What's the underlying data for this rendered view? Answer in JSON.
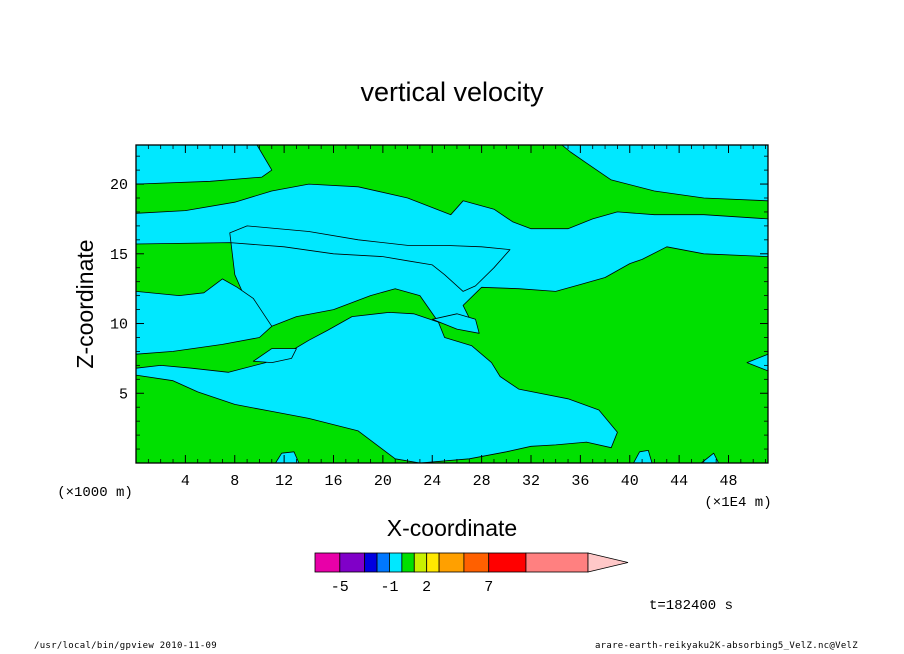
{
  "chart_data": {
    "type": "heatmap",
    "title": "vertical velocity",
    "xlabel": "X-coordinate",
    "ylabel": "Z-coordinate",
    "x_unit": "(×1E4 m)",
    "y_unit": "(×1000 m)",
    "xlim": [
      0,
      51.2
    ],
    "ylim": [
      0,
      22.8
    ],
    "x_ticks": [
      4,
      8,
      12,
      16,
      20,
      24,
      28,
      32,
      36,
      40,
      44,
      48
    ],
    "y_ticks": [
      5,
      10,
      15,
      20
    ],
    "colorbar": {
      "labels": [
        "-5",
        "-1",
        "2",
        "7"
      ],
      "label_values": [
        -5,
        -1,
        2,
        7
      ],
      "bins": [
        {
          "lo": -7,
          "hi": -5,
          "color": "#e800a8"
        },
        {
          "lo": -5,
          "hi": -3,
          "color": "#8000c8"
        },
        {
          "lo": -3,
          "hi": -2,
          "color": "#0000e0"
        },
        {
          "lo": -2,
          "hi": -1,
          "color": "#0078ff"
        },
        {
          "lo": -1,
          "hi": 0,
          "color": "#00e8ff"
        },
        {
          "lo": 0,
          "hi": 1,
          "color": "#00e000"
        },
        {
          "lo": 1,
          "hi": 2,
          "color": "#c8f000"
        },
        {
          "lo": 2,
          "hi": 3,
          "color": "#ffe800"
        },
        {
          "lo": 3,
          "hi": 5,
          "color": "#ffa000"
        },
        {
          "lo": 5,
          "hi": 7,
          "color": "#ff6000"
        },
        {
          "lo": 7,
          "hi": 10,
          "color": "#ff0000"
        },
        {
          "lo": 10,
          "hi": 15,
          "color": "#ff8080"
        }
      ],
      "overflow_color": "#ffc8c8"
    },
    "field": {
      "background_color": "#00e000",
      "region_color": "#00e8ff",
      "regions": [
        [
          [
            0,
            22.8
          ],
          [
            9.8,
            22.8
          ],
          [
            11,
            21
          ],
          [
            10.2,
            20.5
          ],
          [
            6,
            20.2
          ],
          [
            0,
            20
          ]
        ],
        [
          [
            0,
            17.9
          ],
          [
            4,
            18.1
          ],
          [
            8,
            18.7
          ],
          [
            11,
            19.5
          ],
          [
            14,
            20
          ],
          [
            18,
            19.8
          ],
          [
            22,
            19
          ],
          [
            25.5,
            17.8
          ],
          [
            26.5,
            18.8
          ],
          [
            29,
            18.2
          ],
          [
            30.5,
            17.3
          ],
          [
            32,
            16.8
          ],
          [
            35,
            16.8
          ],
          [
            37,
            17.5
          ],
          [
            39,
            18
          ],
          [
            42,
            17.8
          ],
          [
            46,
            17.8
          ],
          [
            51.2,
            17.5
          ],
          [
            51.2,
            14.8
          ],
          [
            46,
            15
          ],
          [
            43,
            15.5
          ],
          [
            41,
            14.6
          ],
          [
            40,
            14.3
          ],
          [
            38,
            13.3
          ],
          [
            36,
            12.8
          ],
          [
            34,
            12.3
          ],
          [
            31,
            12.5
          ],
          [
            28,
            12.6
          ],
          [
            26.5,
            11.3
          ],
          [
            27.5,
            9.5
          ],
          [
            24.5,
            10.1
          ],
          [
            23,
            12
          ],
          [
            21,
            12.5
          ],
          [
            19,
            12
          ],
          [
            16,
            11
          ],
          [
            13,
            10.5
          ],
          [
            11,
            9.8
          ],
          [
            9,
            11.5
          ],
          [
            8,
            13.5
          ],
          [
            7.6,
            16.5
          ],
          [
            9,
            17
          ],
          [
            14,
            16.6
          ],
          [
            18,
            16
          ],
          [
            22,
            15.6
          ],
          [
            25,
            15.6
          ],
          [
            28,
            15.5
          ],
          [
            30.3,
            15.3
          ],
          [
            29,
            14
          ],
          [
            27.5,
            12.7
          ],
          [
            26.5,
            12.3
          ],
          [
            25,
            13.5
          ],
          [
            24,
            14.2
          ],
          [
            22,
            14.5
          ],
          [
            20,
            14.8
          ],
          [
            16,
            15
          ],
          [
            12,
            15.5
          ],
          [
            7.6,
            15.8
          ],
          [
            0,
            15.7
          ]
        ],
        [
          [
            0,
            12.3
          ],
          [
            3.5,
            12
          ],
          [
            5.5,
            12.2
          ],
          [
            7,
            13.2
          ],
          [
            8.2,
            12.6
          ],
          [
            9.5,
            11.8
          ],
          [
            11,
            9.8
          ],
          [
            10,
            9
          ],
          [
            7,
            8.5
          ],
          [
            3,
            8
          ],
          [
            0,
            7.8
          ]
        ],
        [
          [
            0,
            6.3
          ],
          [
            3,
            5.9
          ],
          [
            5,
            5.1
          ],
          [
            8,
            4.2
          ],
          [
            11,
            3.7
          ],
          [
            14,
            3.2
          ],
          [
            18,
            2.3
          ],
          [
            21,
            0.3
          ],
          [
            23,
            0
          ],
          [
            27,
            0.3
          ],
          [
            30,
            0.8
          ],
          [
            32,
            1.2
          ],
          [
            34,
            1.3
          ],
          [
            36.5,
            1.5
          ],
          [
            38.5,
            1.1
          ],
          [
            39,
            2.2
          ],
          [
            37.5,
            3.8
          ],
          [
            35,
            4.6
          ],
          [
            31,
            5.3
          ],
          [
            29.5,
            6.2
          ],
          [
            28.8,
            7.2
          ],
          [
            27.2,
            8.4
          ],
          [
            25,
            9
          ],
          [
            24.5,
            10.1
          ],
          [
            22.5,
            10.7
          ],
          [
            20.5,
            10.8
          ],
          [
            17.5,
            10.5
          ],
          [
            15.5,
            9.5
          ],
          [
            14,
            8.8
          ],
          [
            12.5,
            8
          ],
          [
            10.5,
            7.2
          ],
          [
            7.5,
            6.5
          ],
          [
            4.5,
            6.8
          ],
          [
            2,
            7
          ],
          [
            0,
            6.8
          ]
        ],
        [
          [
            9.5,
            7.3
          ],
          [
            11,
            8.2
          ],
          [
            13,
            8.2
          ],
          [
            12.6,
            7.5
          ],
          [
            11,
            7.2
          ]
        ],
        [
          [
            24,
            10.3
          ],
          [
            26,
            9.6
          ],
          [
            27.8,
            9.3
          ],
          [
            27.5,
            10.3
          ],
          [
            26,
            10.7
          ]
        ],
        [
          [
            34.5,
            22.8
          ],
          [
            51.2,
            22.8
          ],
          [
            51.2,
            18.8
          ],
          [
            46,
            19
          ],
          [
            42,
            19.5
          ],
          [
            38.5,
            20.3
          ],
          [
            36.5,
            21.5
          ],
          [
            35.2,
            22.3
          ]
        ],
        [
          [
            11.3,
            0
          ],
          [
            13.2,
            0
          ],
          [
            12.8,
            0.8
          ],
          [
            11.8,
            0.7
          ]
        ],
        [
          [
            40.3,
            0
          ],
          [
            41.8,
            0
          ],
          [
            41.5,
            0.9
          ],
          [
            40.8,
            0.8
          ]
        ],
        [
          [
            45.8,
            0
          ],
          [
            47.2,
            0
          ],
          [
            46.8,
            0.7
          ]
        ],
        [
          [
            49.5,
            7.2
          ],
          [
            51.2,
            6.6
          ],
          [
            51.2,
            7.8
          ]
        ]
      ]
    },
    "time_label": "t=182400 s"
  },
  "footer": {
    "left": "/usr/local/bin/gpview  2010-11-09",
    "right": "arare-earth-reikyaku2K-absorbing5_VelZ.nc@VelZ"
  }
}
